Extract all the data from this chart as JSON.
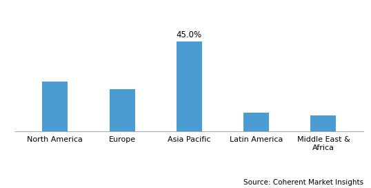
{
  "categories": [
    "North America",
    "Europe",
    "Asia Pacific",
    "Latin America",
    "Middle East &\nAfrica"
  ],
  "values": [
    25,
    21,
    45,
    9.5,
    8
  ],
  "bar_color": "#4B9CD3",
  "annotated_index": 2,
  "annotation_text": "45.0%",
  "annotation_fontsize": 8.5,
  "source_text": "Source: Coherent Market Insights",
  "source_fontsize": 7.5,
  "ylim": [
    0,
    58
  ],
  "bar_width": 0.38,
  "background_color": "#ffffff",
  "tick_fontsize": 8,
  "spine_color": "#aaaaaa"
}
